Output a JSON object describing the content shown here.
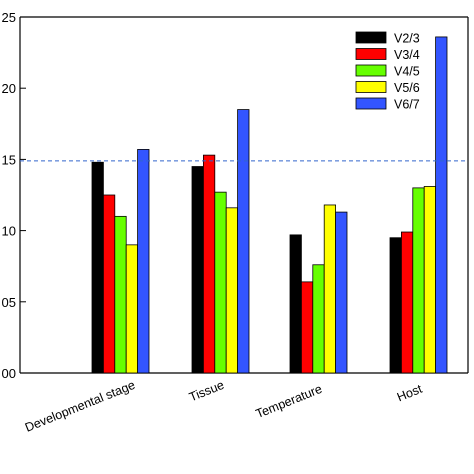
{
  "chart_data": {
    "type": "bar",
    "categories": [
      "Developmental stage",
      "Tissue",
      "Temperature",
      "Host"
    ],
    "series": [
      {
        "name": "V2/3",
        "color": "#000000",
        "values": [
          0.148,
          0.145,
          0.097,
          0.095
        ]
      },
      {
        "name": "V3/4",
        "color": "#ff0000",
        "values": [
          0.125,
          0.153,
          0.064,
          0.099
        ]
      },
      {
        "name": "V4/5",
        "color": "#66ff00",
        "values": [
          0.11,
          0.127,
          0.076,
          0.13
        ]
      },
      {
        "name": "V5/6",
        "color": "#ffff00",
        "values": [
          0.09,
          0.116,
          0.118,
          0.131
        ]
      },
      {
        "name": "V6/7",
        "color": "#3355ff",
        "values": [
          0.157,
          0.185,
          0.113,
          0.236
        ]
      }
    ],
    "yticks": [
      0.0,
      0.05,
      0.1,
      0.15,
      0.2,
      0.25
    ],
    "ytick_labels": [
      "00",
      "05",
      "10",
      "15",
      "20",
      "25"
    ],
    "ylim": [
      0.0,
      0.25
    ],
    "reference_line": {
      "value": 0.149,
      "style": "dashed",
      "color": "#3366cc"
    },
    "legend_position": "top-right",
    "grid": false
  }
}
